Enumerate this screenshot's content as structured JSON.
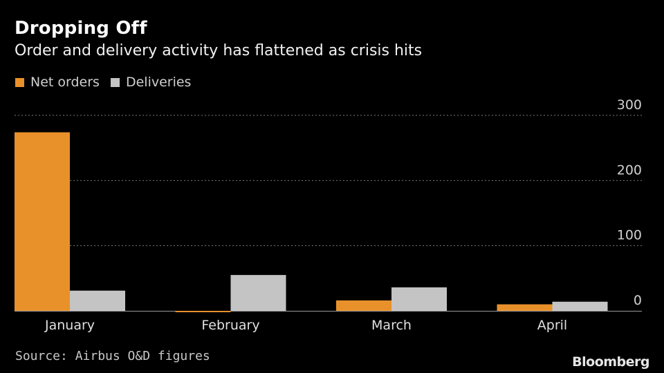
{
  "title": "Dropping Off",
  "subtitle": "Order and delivery activity has flattened as crisis hits",
  "source": "Source: Airbus O&D figures",
  "brand": "Bloomberg",
  "colors": {
    "net_orders": "#e8912a",
    "deliveries": "#c4c4c4",
    "grid": "#7a7a7a",
    "axis": "#9a9a9a"
  },
  "chart_data": {
    "type": "bar",
    "categories": [
      "January",
      "February",
      "March",
      "April"
    ],
    "series": [
      {
        "name": "Net orders",
        "values": [
          274,
          -1,
          16,
          10
        ]
      },
      {
        "name": "Deliveries",
        "values": [
          31,
          55,
          36,
          14
        ]
      }
    ],
    "yticks": [
      "0",
      "100",
      "200",
      "300"
    ],
    "ylim": [
      0,
      300
    ],
    "grid": true,
    "legend": "top-left",
    "y_axis_position": "right"
  }
}
